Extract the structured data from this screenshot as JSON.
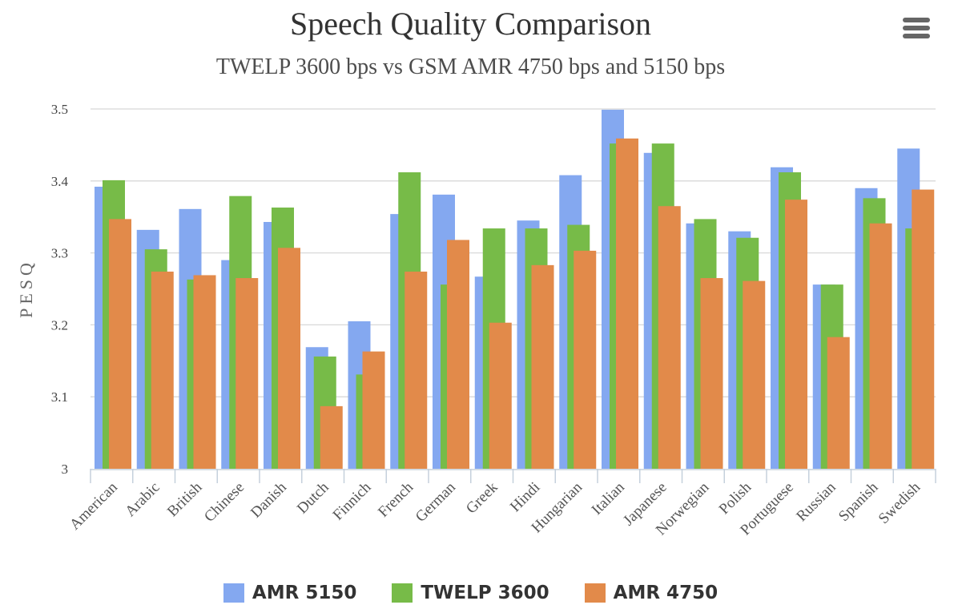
{
  "chart_data": {
    "type": "bar",
    "title": "Speech Quality Comparison",
    "subtitle": "TWELP 3600 bps vs GSM AMR 4750 bps and 5150 bps",
    "xlabel": "",
    "ylabel": "PESQ",
    "ylim": [
      3.0,
      3.5
    ],
    "yticks": [
      "3",
      "3.1",
      "3.2",
      "3.3",
      "3.4",
      "3.5"
    ],
    "ytick_values": [
      3.0,
      3.1,
      3.2,
      3.3,
      3.4,
      3.5
    ],
    "grid": true,
    "legend_position": "bottom-center",
    "categories": [
      "American",
      "Arabic",
      "British",
      "Chinese",
      "Danish",
      "Dutch",
      "Finnich",
      "French",
      "German",
      "Greek",
      "Hindi",
      "Hungarian",
      "Italian",
      "Japanese",
      "Norwegian",
      "Polish",
      "Portuguese",
      "Russian",
      "Spanish",
      "Swedish"
    ],
    "series": [
      {
        "name": "AMR 5150",
        "color": "#84a8f0",
        "values": [
          3.392,
          3.332,
          3.361,
          3.29,
          3.343,
          3.169,
          3.205,
          3.354,
          3.381,
          3.267,
          3.345,
          3.408,
          3.499,
          3.439,
          3.341,
          3.33,
          3.419,
          3.256,
          3.39,
          3.445
        ]
      },
      {
        "name": "TWELP 3600",
        "color": "#77bb48",
        "values": [
          3.401,
          3.305,
          3.263,
          3.379,
          3.363,
          3.156,
          3.131,
          3.412,
          3.256,
          3.334,
          3.334,
          3.339,
          3.452,
          3.452,
          3.347,
          3.321,
          3.412,
          3.256,
          3.376,
          3.334
        ]
      },
      {
        "name": "AMR 4750",
        "color": "#e28a4a",
        "values": [
          3.347,
          3.274,
          3.269,
          3.265,
          3.307,
          3.087,
          3.163,
          3.274,
          3.318,
          3.203,
          3.283,
          3.303,
          3.459,
          3.365,
          3.265,
          3.261,
          3.374,
          3.183,
          3.341,
          3.388
        ]
      }
    ]
  },
  "ui": {
    "menu_icon": "hamburger-menu-icon"
  }
}
